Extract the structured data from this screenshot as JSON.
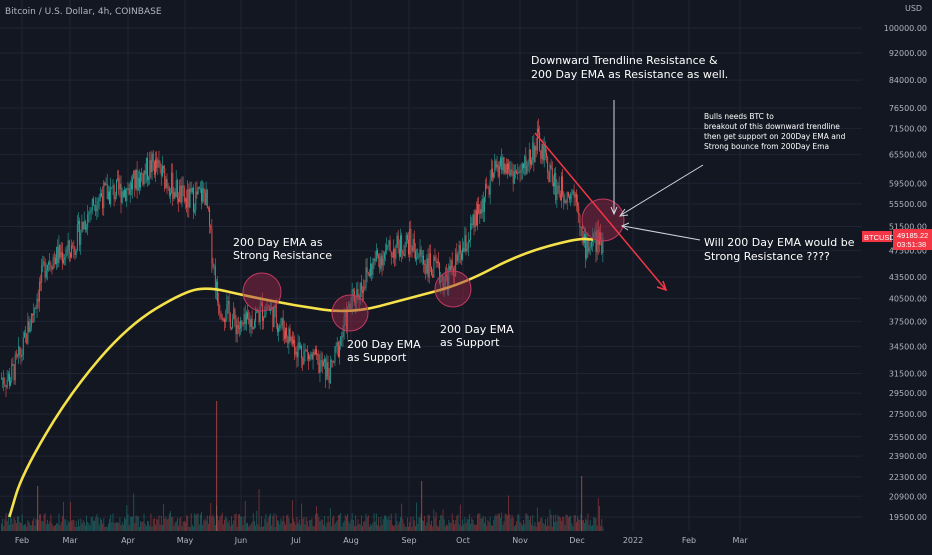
{
  "header": {
    "symbol_title": "Bitcoin / U.S. Dollar, 4h, COINBASE"
  },
  "colors": {
    "background": "#131722",
    "grid": "#1f2433",
    "up": "#26a69a",
    "down": "#ef5350",
    "ema": "#f5e14a",
    "trendline": "#f23645",
    "circle_fill": "#a0284a",
    "axis_text": "#b2b5be",
    "annotation_text": "#ffffff"
  },
  "chart_data": {
    "type": "candlestick",
    "title": "Bitcoin / U.S. Dollar, 4h, COINBASE",
    "y_axis": {
      "unit_label": "USD",
      "scale": "log",
      "ticks": [
        "100000.00",
        "92000.00",
        "84000.00",
        "76500.00",
        "71500.00",
        "65500.00",
        "59500.00",
        "55500.00",
        "51500.00",
        "47500.00",
        "43500.00",
        "40500.00",
        "37500.00",
        "34500.00",
        "31500.00",
        "29500.00",
        "27500.00",
        "25500.00",
        "23900.00",
        "22300.00",
        "20900.00",
        "19500.00"
      ]
    },
    "x_axis": {
      "ticks": [
        "Feb",
        "Mar",
        "Apr",
        "May",
        "Jun",
        "Jul",
        "Aug",
        "Sep",
        "Oct",
        "Nov",
        "Dec",
        "2022",
        "Feb",
        "Mar"
      ]
    },
    "price_path": {
      "description": "approximate BTCUSD closes by month position",
      "x": [
        "Jan 15",
        "Feb 1",
        "Feb 15",
        "Mar 1",
        "Mar 15",
        "Apr 1",
        "Apr 14",
        "May 1",
        "May 12",
        "May 19",
        "Jun 1",
        "Jun 15",
        "Jul 1",
        "Jul 20",
        "Aug 1",
        "Aug 15",
        "Sep 1",
        "Sep 7",
        "Sep 21",
        "Oct 1",
        "Oct 20",
        "Nov 1",
        "Nov 10",
        "Nov 20",
        "Dec 1",
        "Dec 4",
        "Dec 10"
      ],
      "y": [
        31000,
        34000,
        46000,
        47500,
        57000,
        58500,
        63500,
        56000,
        57500,
        40000,
        36500,
        39500,
        34500,
        31500,
        40000,
        46500,
        49000,
        46500,
        43000,
        47500,
        63500,
        61000,
        68500,
        58500,
        57500,
        48000,
        49185
      ]
    },
    "ema": {
      "name": "200 Day EMA",
      "x": [
        "Jan 15",
        "Feb 1",
        "Mar 1",
        "Apr 1",
        "May 1",
        "May 15",
        "Jun 1",
        "Jul 1",
        "Aug 1",
        "Sep 1",
        "Oct 1",
        "Nov 1",
        "Dec 1",
        "Dec 10"
      ],
      "y": [
        19500,
        22500,
        29500,
        37000,
        41500,
        42000,
        41000,
        39500,
        38500,
        40500,
        42500,
        47000,
        49500,
        49300
      ]
    },
    "current_price": {
      "label": "BTCUSD",
      "price": "49185.22",
      "countdown": "03:51:38"
    },
    "trendline": {
      "from": {
        "x": "Nov 10",
        "y": 69000
      },
      "to": {
        "x": "Jan 7",
        "y": 42000
      }
    },
    "annotations": [
      {
        "text": [
          "200 Day EMA as",
          "Strong Resistance"
        ]
      },
      {
        "text": [
          "200 Day EMA",
          "as Support"
        ]
      },
      {
        "text": [
          "200 Day EMA",
          "as Support"
        ]
      },
      {
        "text": [
          "Downward Trendline Resistance &",
          "200 Day EMA as Resistance as well."
        ]
      },
      {
        "text": [
          "Bulls needs BTC to",
          "breakout of this downward trendline",
          "then get support on 200Day EMA and",
          "Strong bounce from 200Day Ema"
        ]
      },
      {
        "text": [
          "Will 200 Day EMA would be",
          "Strong Resistance ????"
        ]
      }
    ]
  }
}
